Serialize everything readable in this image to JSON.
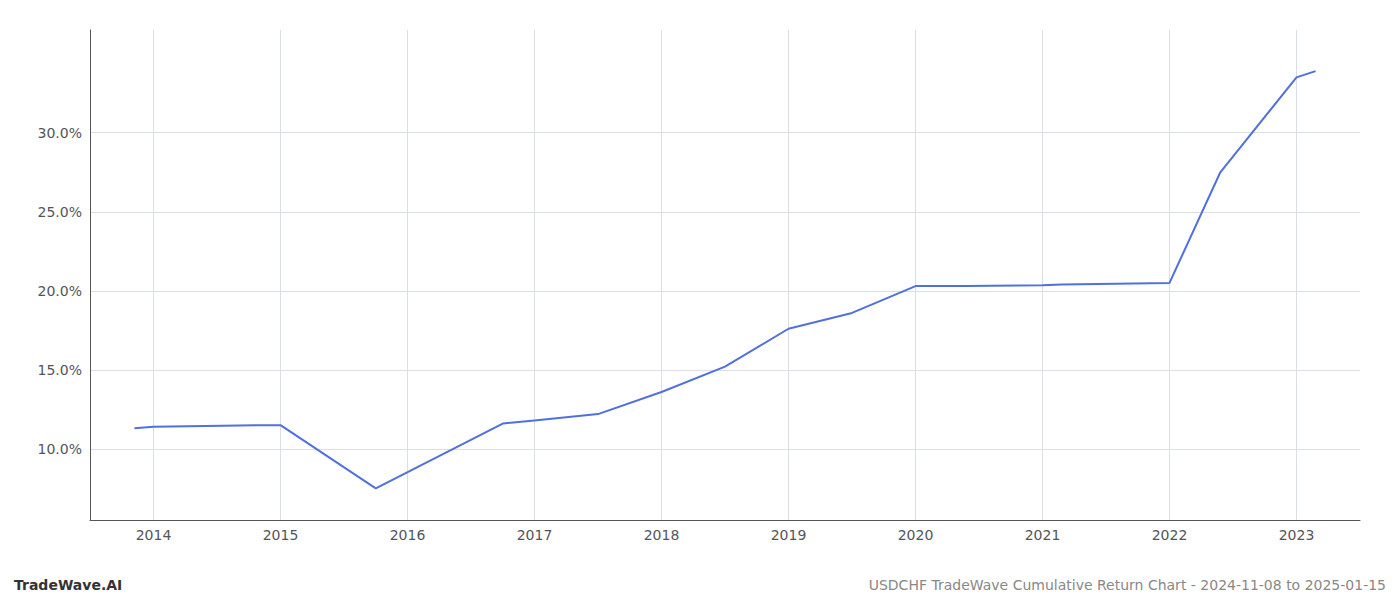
{
  "chart_data": {
    "type": "line",
    "x": [
      2013.85,
      2014.0,
      2014.83,
      2015.0,
      2015.75,
      2016.75,
      2017.0,
      2017.5,
      2018.0,
      2018.5,
      2019.0,
      2019.5,
      2020.0,
      2020.4,
      2021.0,
      2021.15,
      2022.0,
      2022.4,
      2023.0,
      2023.15
    ],
    "values": [
      11.3,
      11.4,
      11.5,
      11.5,
      7.5,
      11.6,
      11.8,
      12.2,
      13.6,
      15.2,
      17.6,
      18.6,
      20.3,
      20.3,
      20.35,
      20.4,
      20.5,
      27.5,
      33.5,
      33.9
    ],
    "xlim": [
      2013.5,
      2023.5
    ],
    "xticks": [
      2014,
      2015,
      2016,
      2017,
      2018,
      2019,
      2020,
      2021,
      2022,
      2023
    ],
    "ylim": [
      5.5,
      36.5
    ],
    "yticks": [
      {
        "value": 10.0,
        "label": "10.0%"
      },
      {
        "value": 15.0,
        "label": "15.0%"
      },
      {
        "value": 20.0,
        "label": "20.0%"
      },
      {
        "value": 25.0,
        "label": "25.0%"
      },
      {
        "value": 30.0,
        "label": "30.0%"
      }
    ],
    "grid": true,
    "annotations": [
      "TradeWave.AI",
      "USDCHF TradeWave Cumulative Return Chart - 2024-11-08 to 2025-01-15"
    ]
  }
}
